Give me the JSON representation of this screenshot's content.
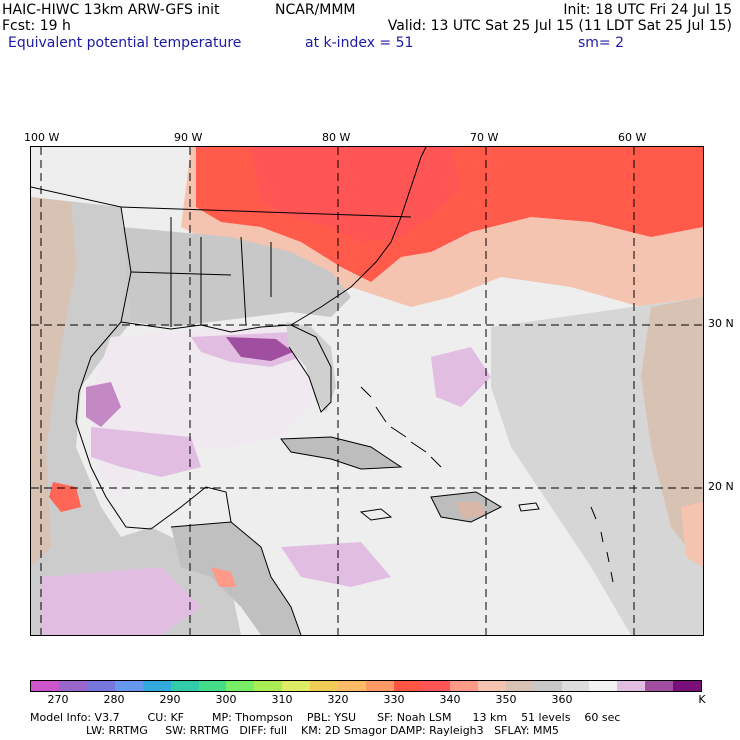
{
  "header": {
    "model_title": "HAIC-HIWC 13km ARW-GFS init",
    "center": "NCAR/MMM",
    "init": "Init: 18 UTC Fri 24 Jul 15",
    "fcst": "Fcst:   19 h",
    "valid": "Valid: 13 UTC Sat 25 Jul 15 (11 LDT Sat 25 Jul 15)",
    "field": "Equivalent potential temperature",
    "level": "at k-index =  51",
    "smoothing": "sm= 2"
  },
  "map": {
    "longitude_labels": [
      "100 W",
      "90 W",
      "80 W",
      "70 W",
      "60 W"
    ],
    "latitude_labels": [
      "30 N",
      "20 N"
    ]
  },
  "colorbar": {
    "colors": [
      "#cc55cc",
      "#9966cc",
      "#7777dd",
      "#6699ee",
      "#33aadd",
      "#33ccaa",
      "#44dd88",
      "#77ee66",
      "#aaee55",
      "#ddee66",
      "#eecc55",
      "#ffbb66",
      "#ff9966",
      "#ff5544",
      "#ff5555",
      "#ff9988",
      "#f5c4b0",
      "#d8c2b4",
      "#c8c8c8",
      "#dcdcdc",
      "#f2f2f2",
      "#e2bde2",
      "#a04ea0",
      "#7a0f7a"
    ],
    "labels": [
      "270",
      "280",
      "290",
      "300",
      "310",
      "320",
      "330",
      "340",
      "350",
      "360"
    ],
    "unit": "K"
  },
  "model_info": {
    "line1": "Model Info: V3.7        CU: KF        MP: Thompson    PBL: YSU      SF: Noah LSM      13 km    51 levels    60 sec",
    "line2": "                LW: RRTMG     SW: RRTMG   DIFF: full    KM: 2D Smagor DAMP: Rayleigh3   SFLAY: MM5"
  }
}
